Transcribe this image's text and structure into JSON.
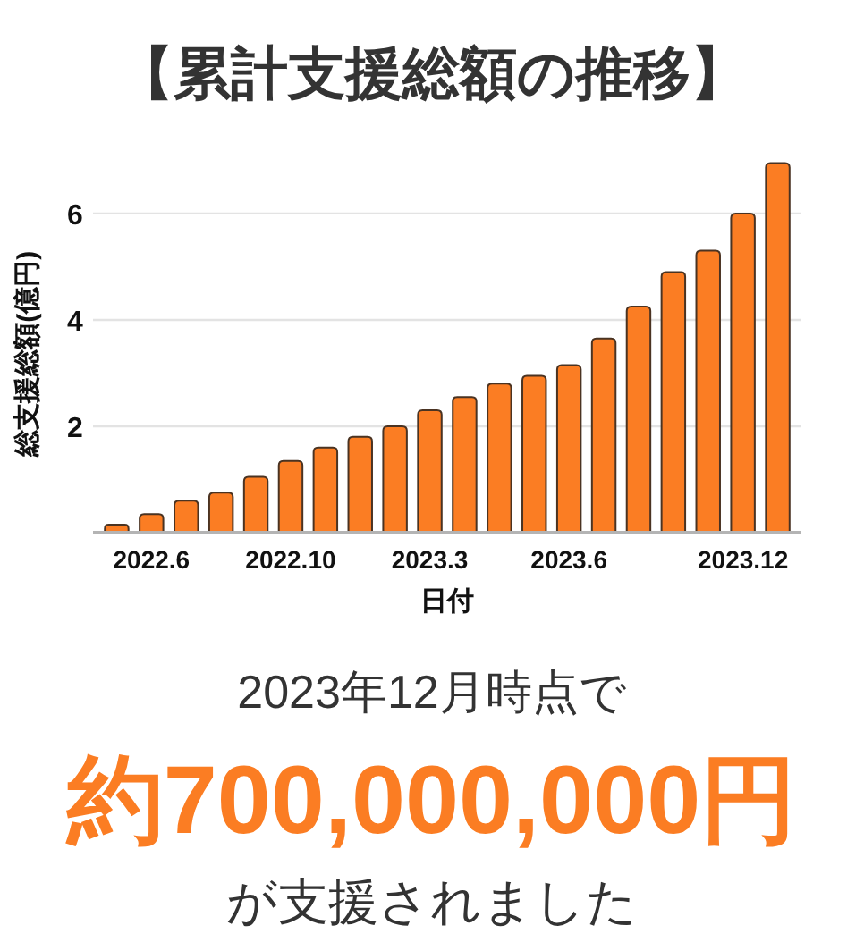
{
  "chart_data": {
    "type": "bar",
    "title": "【累計支援総額の推移】",
    "xlabel": "日付",
    "ylabel": "総支援総額(億円)",
    "categories": [
      null,
      "2022.6",
      null,
      null,
      null,
      "2022.10",
      null,
      null,
      null,
      "2023.3",
      null,
      null,
      null,
      "2023.6",
      null,
      null,
      null,
      null,
      "2023.12",
      null
    ],
    "values": [
      0.15,
      0.35,
      0.6,
      0.75,
      1.05,
      1.35,
      1.6,
      1.8,
      2.0,
      2.3,
      2.55,
      2.8,
      2.95,
      3.15,
      3.65,
      4.25,
      4.9,
      5.3,
      6.0,
      6.95
    ],
    "color": "#fb7d23",
    "ylim": [
      0,
      7
    ],
    "yticks": [
      2,
      4,
      6
    ],
    "grid": "y",
    "annotations": [
      "2023年12月時点で",
      "約700,000,000円",
      "が支援されました"
    ]
  }
}
